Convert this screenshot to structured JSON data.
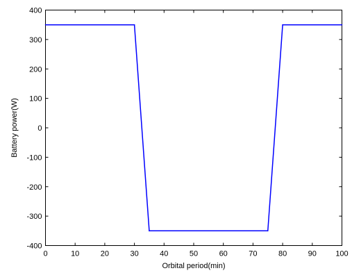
{
  "chart_data": {
    "type": "line",
    "title": "",
    "xlabel": "Orbital period(min)",
    "ylabel": "Battery power(W)",
    "xlim": [
      0,
      100
    ],
    "ylim": [
      -400,
      400
    ],
    "x_ticks": [
      0,
      10,
      20,
      30,
      40,
      50,
      60,
      70,
      80,
      90,
      100
    ],
    "y_ticks": [
      -400,
      -300,
      -200,
      -100,
      0,
      100,
      200,
      300,
      400
    ],
    "grid": false,
    "box": true,
    "series": [
      {
        "color": "#0000ff",
        "x": [
          0,
          30,
          35,
          75,
          80,
          100
        ],
        "y": [
          350,
          350,
          -350,
          -350,
          350,
          350
        ]
      }
    ]
  }
}
